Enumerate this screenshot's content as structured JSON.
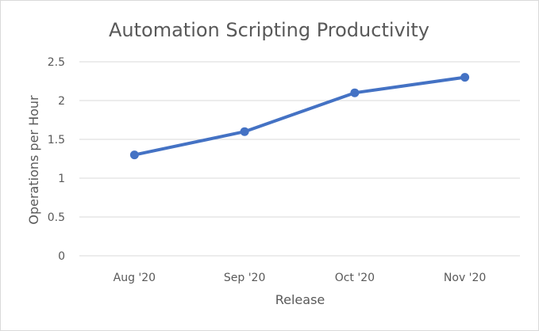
{
  "chart_data": {
    "type": "line",
    "title": "Automation Scripting Productivity",
    "xlabel": "Release",
    "ylabel": "Operations per Hour",
    "categories": [
      "Aug '20",
      "Sep '20",
      "Oct '20",
      "Nov '20"
    ],
    "series": [
      {
        "values": [
          1.3,
          1.6,
          2.1,
          2.3
        ]
      }
    ],
    "ylim": [
      0,
      2.5
    ],
    "yticks": [
      "0",
      "0.5",
      "1",
      "1.5",
      "2",
      "2.5"
    ],
    "grid": true,
    "legend": "none",
    "line_color": "#4472c4",
    "grid_color": "#d9d9d9",
    "text_color": "#595959"
  }
}
